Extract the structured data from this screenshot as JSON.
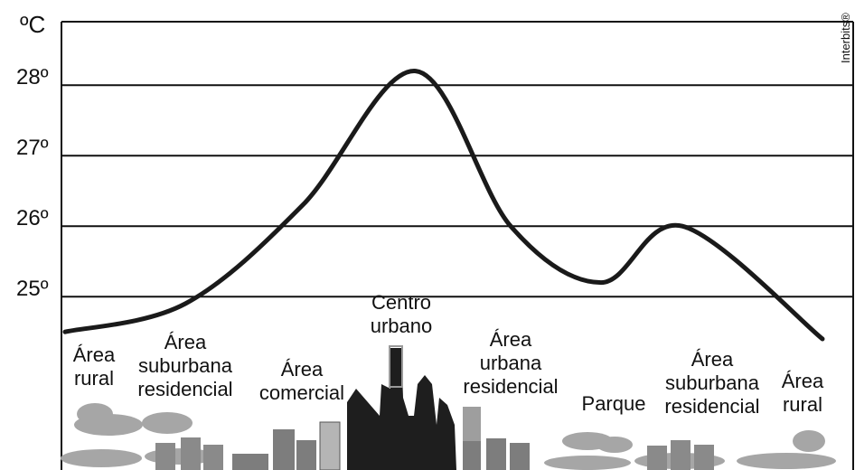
{
  "chart_data": {
    "type": "line",
    "y_unit": "ºC",
    "y_ticks": [
      "25º",
      "26º",
      "27º",
      "28º"
    ],
    "ylim": [
      24.0,
      28.9
    ],
    "grid": true,
    "series": [
      {
        "x": [
          "Área rural",
          "Área suburbana residencial",
          "Área comercial",
          "Centro urbano",
          "Área urbana residencial",
          "Parque",
          "Área suburbana residencial",
          "Área rural"
        ],
        "values": [
          24.5,
          24.9,
          26.3,
          28.2,
          26.0,
          25.2,
          26.0,
          24.4
        ]
      }
    ],
    "zones": [
      {
        "label": "Área\nrural"
      },
      {
        "label": "Área\nsuburbana\nresidencial"
      },
      {
        "label": "Área\ncomercial"
      },
      {
        "label": "Centro\nurbano"
      },
      {
        "label": "Área\nurbana\nresidencial"
      },
      {
        "label": "Parque"
      },
      {
        "label": "Área\nsuburbana\nresidencial"
      },
      {
        "label": "Área\nrural"
      }
    ],
    "credit": "Interbits®"
  },
  "colors": {
    "line": "#1a1a1a",
    "grid": "#111111",
    "tree": "#a6a6a6",
    "building_dark": "#1e1e1e",
    "building_mid": "#7d7d7d",
    "building_light": "#b5b5b5"
  }
}
